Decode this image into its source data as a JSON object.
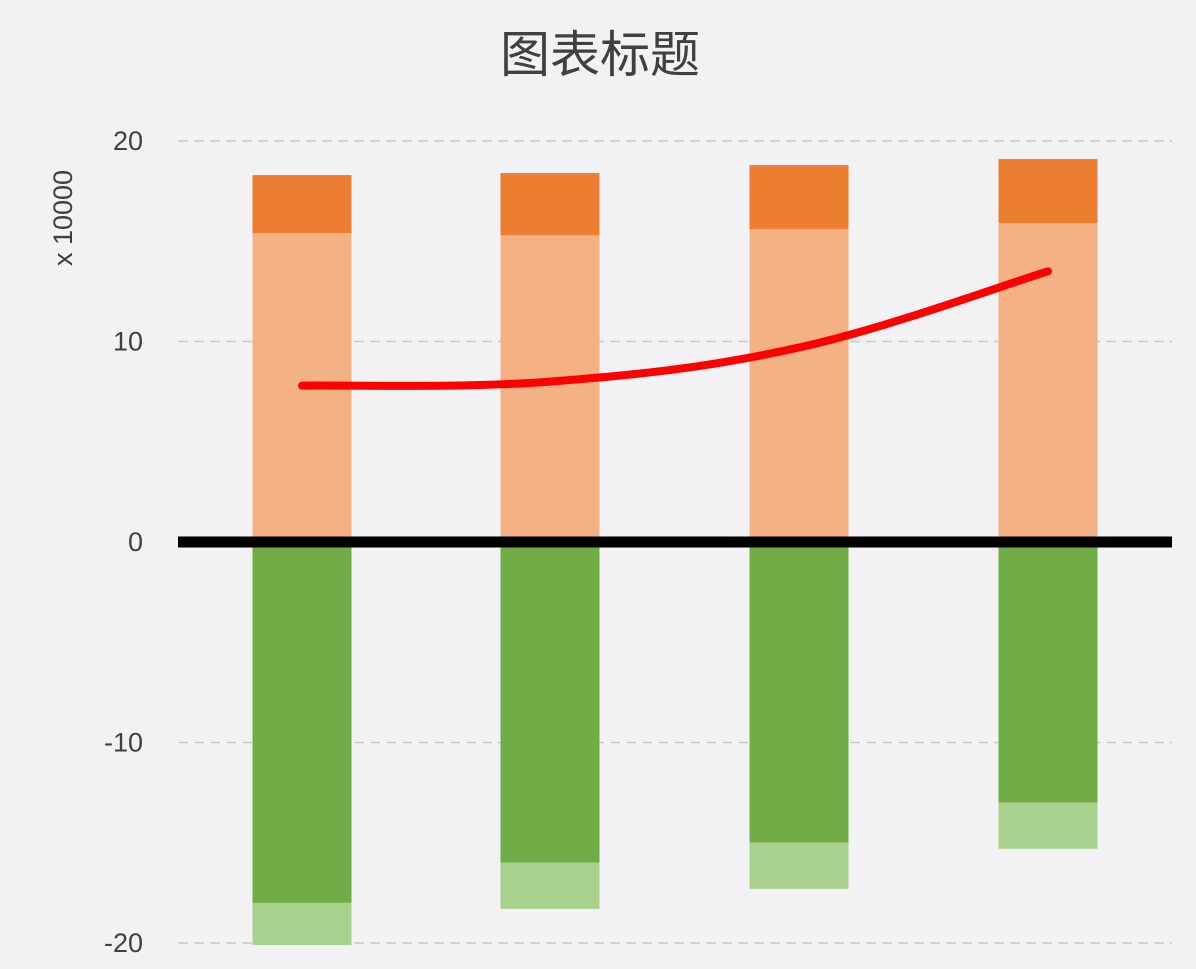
{
  "chart_data": {
    "type": "bar",
    "title": "图表标题",
    "ylabel": "x 10000",
    "xlabel": "",
    "categories": [
      "",
      "",
      "",
      ""
    ],
    "ylim": [
      -20,
      20
    ],
    "yticks": [
      20,
      10,
      0,
      -10,
      -20
    ],
    "grid": true,
    "stacked": true,
    "legend": "none",
    "series": [
      {
        "type": "bar",
        "stack": "positive",
        "color": "#f4b183",
        "values": [
          15.4,
          15.3,
          15.6,
          15.9
        ]
      },
      {
        "type": "bar",
        "stack": "positive",
        "color": "#ed7d31",
        "values": [
          2.9,
          3.1,
          3.2,
          3.2
        ]
      },
      {
        "type": "bar",
        "stack": "negative",
        "color": "#70ad47",
        "values": [
          -18.0,
          -16.0,
          -15.0,
          -13.0
        ]
      },
      {
        "type": "bar",
        "stack": "negative",
        "color": "#a9d18e",
        "values": [
          -2.1,
          -2.3,
          -2.3,
          -2.3
        ]
      },
      {
        "type": "line",
        "color": "#ff0000",
        "values": [
          7.8,
          8.0,
          9.7,
          13.5
        ]
      }
    ],
    "zero_line_color": "#000000",
    "grid_color": "#c8c8c8"
  }
}
